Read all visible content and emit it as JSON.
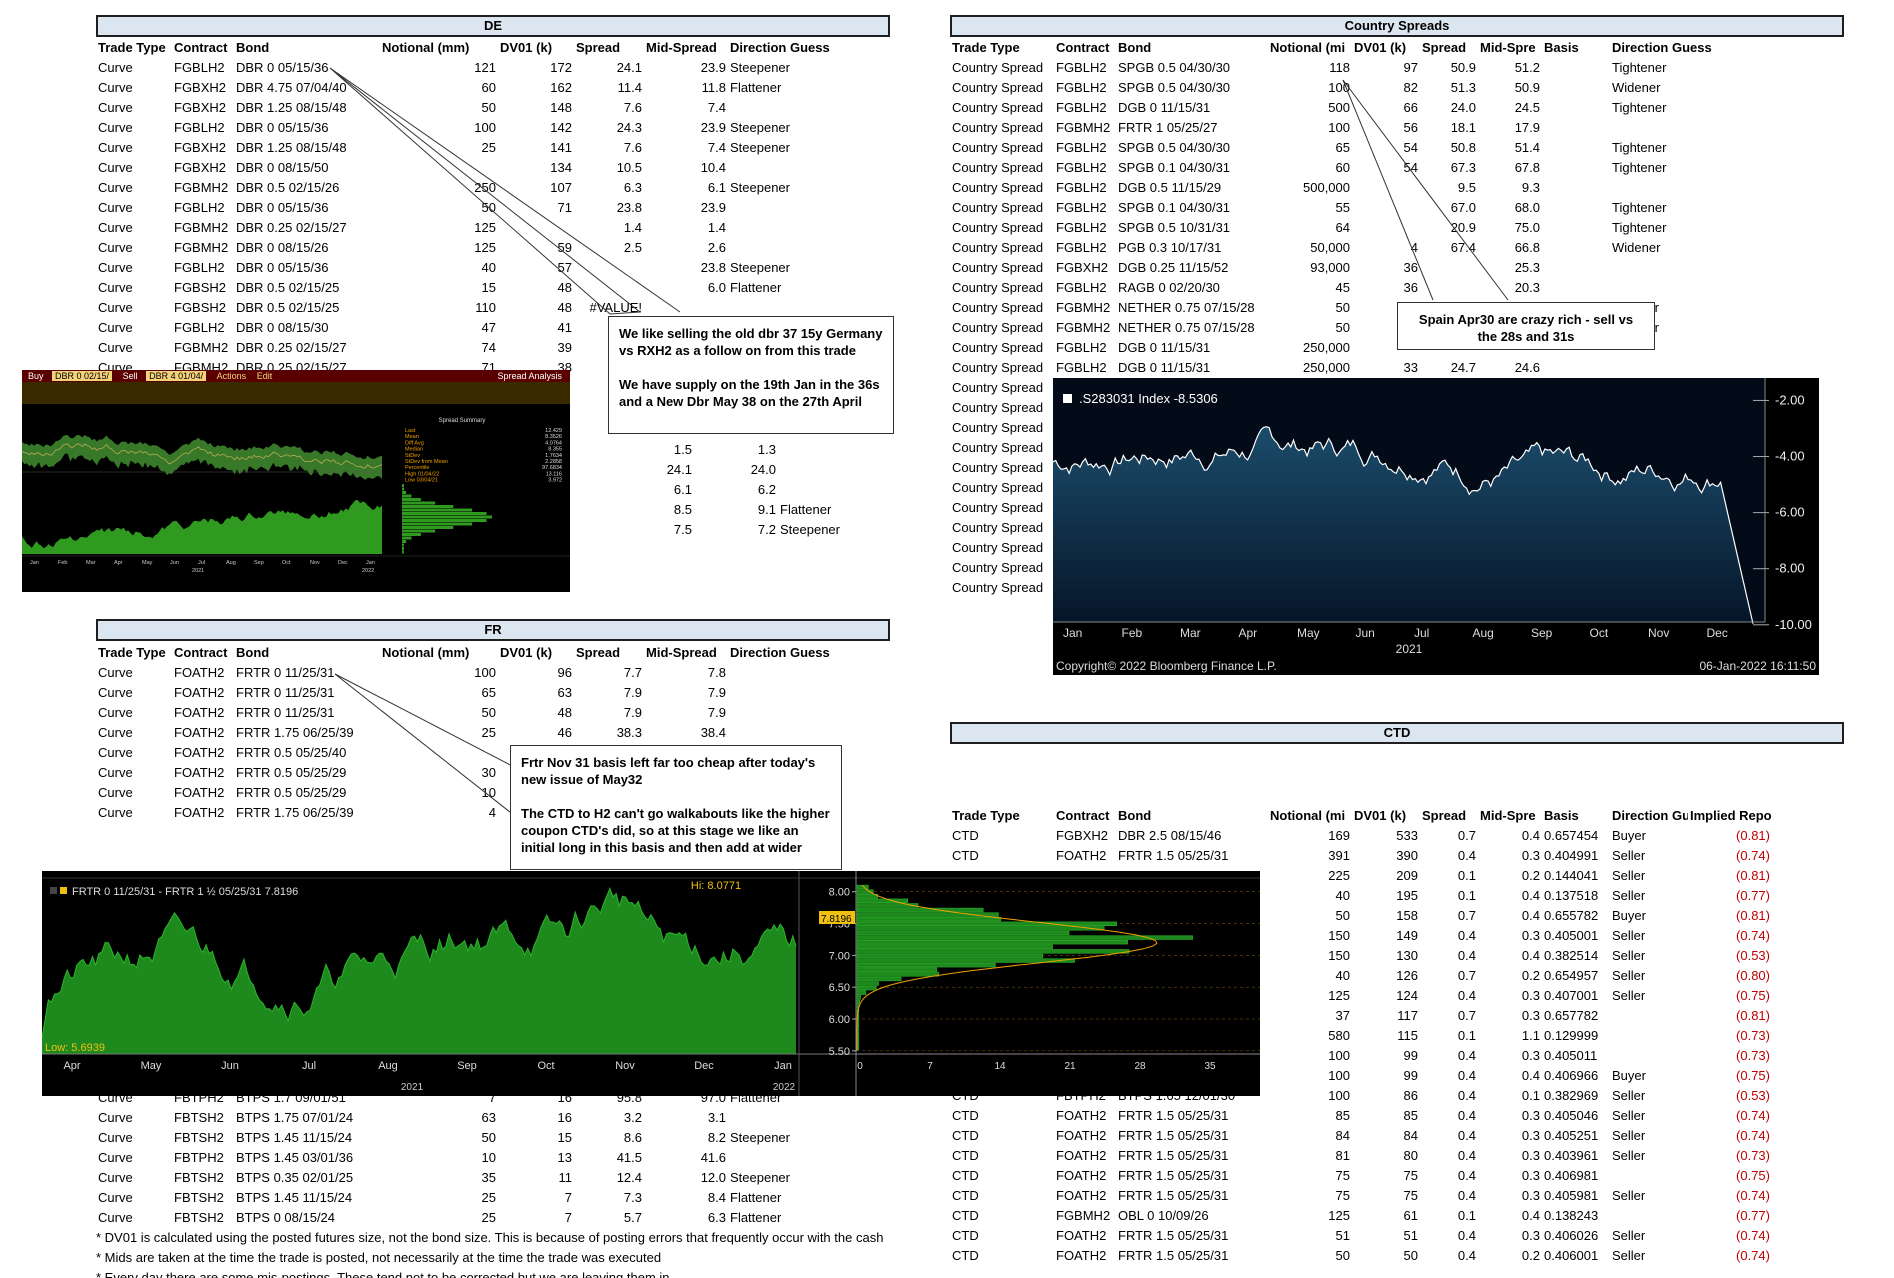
{
  "de": {
    "title": "DE",
    "headers": [
      "Trade Type",
      "Contract",
      "Bond",
      "Notional (mm)",
      "DV01 (k)",
      "Spread",
      "Mid-Spread",
      "Direction Guess"
    ],
    "rows": [
      [
        "Curve",
        "FGBLH2",
        "DBR 0 05/15/36",
        "121",
        "172",
        "24.1",
        "23.9",
        "Steepener"
      ],
      [
        "Curve",
        "FGBXH2",
        "DBR 4.75 07/04/40",
        "60",
        "162",
        "11.4",
        "11.8",
        "Flattener"
      ],
      [
        "Curve",
        "FGBXH2",
        "DBR 1.25 08/15/48",
        "50",
        "148",
        "7.6",
        "7.4",
        ""
      ],
      [
        "Curve",
        "FGBLH2",
        "DBR 0 05/15/36",
        "100",
        "142",
        "24.3",
        "23.9",
        "Steepener"
      ],
      [
        "Curve",
        "FGBXH2",
        "DBR 1.25 08/15/48",
        "25",
        "141",
        "7.6",
        "7.4",
        "Steepener"
      ],
      [
        "Curve",
        "FGBXH2",
        "DBR 0 08/15/50",
        "",
        "134",
        "10.5",
        "10.4",
        ""
      ],
      [
        "Curve",
        "FGBMH2",
        "DBR 0.5 02/15/26",
        "250",
        "107",
        "6.3",
        "6.1",
        "Steepener"
      ],
      [
        "Curve",
        "FGBLH2",
        "DBR 0 05/15/36",
        "50",
        "71",
        "23.8",
        "23.9",
        ""
      ],
      [
        "Curve",
        "FGBMH2",
        "DBR 0.25 02/15/27",
        "125",
        "",
        "1.4",
        "1.4",
        ""
      ],
      [
        "Curve",
        "FGBMH2",
        "DBR 0 08/15/26",
        "125",
        "59",
        "2.5",
        "2.6",
        ""
      ],
      [
        "Curve",
        "FGBLH2",
        "DBR 0 05/15/36",
        "40",
        "57",
        "",
        "23.8",
        "Steepener"
      ],
      [
        "Curve",
        "FGBSH2",
        "DBR 0.5 02/15/25",
        "15",
        "48",
        "",
        "6.0",
        "Flattener"
      ],
      [
        "Curve",
        "FGBSH2",
        "DBR 0.5 02/15/25",
        "110",
        "48",
        "#VALUE!",
        "",
        ""
      ],
      [
        "Curve",
        "FGBLH2",
        "DBR 0 08/15/30",
        "47",
        "41",
        "",
        "",
        ""
      ],
      [
        "Curve",
        "FGBMH2",
        "DBR 0.25 02/15/27",
        "74",
        "39",
        "",
        "",
        ""
      ],
      [
        "Curve",
        "FGBMH2",
        "DBR 0.25 02/15/27",
        "71",
        "38",
        "",
        "",
        ""
      ]
    ],
    "extra_rows": [
      [
        "1.5",
        "1.3",
        ""
      ],
      [
        "24.1",
        "24.0",
        ""
      ],
      [
        "6.1",
        "6.2",
        ""
      ],
      [
        "8.5",
        "9.1",
        "Flattener"
      ],
      [
        "7.5",
        "7.2",
        "Steepener"
      ]
    ]
  },
  "note_de": "We like selling the old dbr 37 15y Germany vs RXH2 as a follow on from this trade\n\nWe have supply on the 19th Jan in the 36s and a New Dbr May 38 on the 27th April",
  "bbg_small": {
    "buy": "Buy",
    "bond1": "DBR 0 02/15/",
    "sell": "Sell",
    "bond2": "DBR 4 01/04/",
    "actions": "Actions",
    "edit": "Edit",
    "title": "Spread Analysis",
    "summary_title": "Spread Summary",
    "stat_labels": [
      "Last",
      "Mean",
      "Diff Avg",
      "Median",
      "StDev",
      "StDev from Mean",
      "Percentile",
      "High 01/04/22",
      "Low 03/04/21"
    ],
    "stat_values": [
      "12.429",
      "8.3526",
      "4.0764",
      "8.355",
      "1.7634",
      "2.2858",
      "97.6834",
      "13.116",
      "3.972"
    ],
    "months": [
      "Jan",
      "Feb",
      "Mar",
      "Apr",
      "May",
      "Jun",
      "Jul",
      "Aug",
      "Sep",
      "Oct",
      "Nov",
      "Dec",
      "Jan"
    ],
    "year_left": "2021",
    "year_right": "2022"
  },
  "cs": {
    "title": "Country Spreads",
    "headers": [
      "Trade Type",
      "Contract",
      "Bond",
      "Notional (mi",
      "DV01 (k)",
      "Spread",
      "Mid-Spre",
      "Basis",
      "Direction Guess"
    ],
    "rows": [
      [
        "Country Spread",
        "FGBLH2",
        "SPGB 0.5 04/30/30",
        "118",
        "97",
        "50.9",
        "51.2",
        "",
        "Tightener"
      ],
      [
        "Country Spread",
        "FGBLH2",
        "SPGB 0.5 04/30/30",
        "100",
        "82",
        "51.3",
        "50.9",
        "",
        "Widener"
      ],
      [
        "Country Spread",
        "FGBLH2",
        "DGB 0 11/15/31",
        "500",
        "66",
        "24.0",
        "24.5",
        "",
        "Tightener"
      ],
      [
        "Country Spread",
        "FGBMH2",
        "FRTR 1 05/25/27",
        "100",
        "56",
        "18.1",
        "17.9",
        "",
        ""
      ],
      [
        "Country Spread",
        "FGBLH2",
        "SPGB 0.5 04/30/30",
        "65",
        "54",
        "50.8",
        "51.4",
        "",
        "Tightener"
      ],
      [
        "Country Spread",
        "FGBLH2",
        "SPGB 0.1 04/30/31",
        "60",
        "54",
        "67.3",
        "67.8",
        "",
        "Tightener"
      ],
      [
        "Country Spread",
        "FGBLH2",
        "DGB 0.5 11/15/29",
        "500,000",
        "",
        "9.5",
        "9.3",
        "",
        ""
      ],
      [
        "Country Spread",
        "FGBLH2",
        "SPGB 0.1 04/30/31",
        "55",
        "",
        "67.0",
        "68.0",
        "",
        "Tightener"
      ],
      [
        "Country Spread",
        "FGBLH2",
        "SPGB 0.5 10/31/31",
        "64",
        "",
        "20.9",
        "75.0",
        "",
        "Tightener"
      ],
      [
        "Country Spread",
        "FGBLH2",
        "PGB 0.3 10/17/31",
        "50,000",
        "4",
        "67.4",
        "66.8",
        "",
        "Widener"
      ],
      [
        "Country Spread",
        "FGBXH2",
        "DGB 0.25 11/15/52",
        "93,000",
        "36",
        "",
        "25.3",
        "",
        ""
      ],
      [
        "Country Spread",
        "FGBLH2",
        "RAGB 0 02/20/30",
        "45",
        "36",
        "",
        "20.3",
        "",
        ""
      ],
      [
        "Country Spread",
        "FGBMH2",
        "NETHER 0.75 07/15/28",
        "50",
        "",
        "",
        "",
        "",
        "ightener"
      ],
      [
        "Country Spread",
        "FGBMH2",
        "NETHER 0.75 07/15/28",
        "50",
        "",
        "",
        "",
        "",
        "ightener"
      ],
      [
        "Country Spread",
        "FGBLH2",
        "DGB 0 11/15/31",
        "250,000",
        "",
        "",
        "",
        "",
        ""
      ],
      [
        "Country Spread",
        "FGBLH2",
        "DGB 0 11/15/31",
        "250,000",
        "33",
        "24.7",
        "24.6",
        "",
        ""
      ],
      [
        "Country Spread",
        "",
        "",
        "",
        "",
        "",
        "",
        "",
        ""
      ],
      [
        "Country Spread",
        "",
        "",
        "",
        "",
        "",
        "",
        "",
        ""
      ],
      [
        "Country Spread",
        "",
        "",
        "",
        "",
        "",
        "",
        "",
        ""
      ],
      [
        "Country Spread",
        "",
        "",
        "",
        "",
        "",
        "",
        "",
        ""
      ],
      [
        "Country Spread",
        "",
        "",
        "",
        "",
        "",
        "",
        "",
        ""
      ],
      [
        "Country Spread",
        "",
        "",
        "",
        "",
        "",
        "",
        "",
        ""
      ],
      [
        "Country Spread",
        "",
        "",
        "",
        "",
        "",
        "",
        "",
        ""
      ],
      [
        "Country Spread",
        "",
        "",
        "",
        "",
        "",
        "",
        "",
        ""
      ],
      [
        "Country Spread",
        "",
        "",
        "",
        "",
        "",
        "",
        "",
        ""
      ],
      [
        "Country Spread",
        "",
        "",
        "",
        "",
        "",
        "",
        "",
        ""
      ],
      [
        "Country Spread",
        "",
        "",
        "",
        "",
        "",
        "",
        "",
        ""
      ]
    ]
  },
  "note_cs": "Spain Apr30 are crazy rich - sell vs the 28s and 31s",
  "bbg_spain": {
    "legend": ".S283031 Index  -8.5306",
    "copyright": "Copyright© 2022 Bloomberg Finance L.P.",
    "timestamp": "06-Jan-2022 16:11:50",
    "year": "2021",
    "months": [
      "Jan",
      "Feb",
      "Mar",
      "Apr",
      "May",
      "Jun",
      "Jul",
      "Aug",
      "Sep",
      "Oct",
      "Nov",
      "Dec"
    ],
    "yticks": [
      "-2.00",
      "-4.00",
      "-6.00",
      "-8.00",
      "-10.00"
    ],
    "fill_color": "#1b4c6b"
  },
  "fr": {
    "title": "FR",
    "headers": [
      "Trade Type",
      "Contract",
      "Bond",
      "Notional (mm)",
      "DV01 (k)",
      "Spread",
      "Mid-Spread",
      "Direction Guess"
    ],
    "rows": [
      [
        "Curve",
        "FOATH2",
        "FRTR 0 11/25/31",
        "100",
        "96",
        "7.7",
        "7.8",
        ""
      ],
      [
        "Curve",
        "FOATH2",
        "FRTR 0 11/25/31",
        "65",
        "63",
        "7.9",
        "7.9",
        ""
      ],
      [
        "Curve",
        "FOATH2",
        "FRTR 0 11/25/31",
        "50",
        "48",
        "7.9",
        "7.9",
        ""
      ],
      [
        "Curve",
        "FOATH2",
        "FRTR 1.75 06/25/39",
        "25",
        "46",
        "38.3",
        "38.4",
        ""
      ],
      [
        "Curve",
        "FOATH2",
        "FRTR 0.5 05/25/40",
        "",
        "",
        "",
        "",
        "r"
      ],
      [
        "Curve",
        "FOATH2",
        "FRTR 0.5 05/25/29",
        "30",
        "",
        "",
        "",
        ""
      ],
      [
        "Curve",
        "FOATH2",
        "FRTR 0.5 05/25/29",
        "10",
        "",
        "",
        "",
        "r"
      ],
      [
        "Curve",
        "FOATH2",
        "FRTR 1.75 06/25/39",
        "4",
        "",
        "",
        "",
        ""
      ]
    ],
    "bottom_rows": [
      [
        "Curve",
        "FBTPH2",
        "BTPS 1.7 09/01/51",
        "7",
        "16",
        "95.8",
        "97.0",
        "Flattener"
      ],
      [
        "Curve",
        "FBTSH2",
        "BTPS 1.75 07/01/24",
        "63",
        "16",
        "3.2",
        "3.1",
        ""
      ],
      [
        "Curve",
        "FBTSH2",
        "BTPS 1.45 11/15/24",
        "50",
        "15",
        "8.6",
        "8.2",
        "Steepener"
      ],
      [
        "Curve",
        "FBTPH2",
        "BTPS 1.45 03/01/36",
        "10",
        "13",
        "41.5",
        "41.6",
        ""
      ],
      [
        "Curve",
        "FBTSH2",
        "BTPS 0.35 02/01/25",
        "35",
        "11",
        "12.4",
        "12.0",
        "Steepener"
      ],
      [
        "Curve",
        "FBTSH2",
        "BTPS 1.45 11/15/24",
        "25",
        "7",
        "7.3",
        "8.4",
        "Flattener"
      ],
      [
        "Curve",
        "FBTSH2",
        "BTPS 0 08/15/24",
        "25",
        "7",
        "5.7",
        "6.3",
        "Flattener"
      ]
    ]
  },
  "note_fr": "Frtr Nov 31 basis left far too cheap after today's new issue of May32\n\nThe CTD to H2 can't go walkabouts like the higher coupon CTD's did, so at this stage we like an initial long in this basis and then add at wider",
  "bbg_fr": {
    "legend": "FRTR 0 11/25/31 - FRTR 1 ½ 05/25/31 7.8196",
    "hi": "Hi: 8.0771",
    "low": "Low: 5.6939",
    "last": "7.8196",
    "months": [
      "Apr",
      "May",
      "Jun",
      "Jul",
      "Aug",
      "Sep",
      "Oct",
      "Nov",
      "Dec",
      "Jan"
    ],
    "year_left": "2021",
    "year_right": "2022",
    "yticks": [
      "8.00",
      "7.50",
      "7.00",
      "6.50",
      "6.00",
      "5.50"
    ],
    "hist_x": [
      "0",
      "7",
      "14",
      "21",
      "28",
      "35"
    ],
    "fill_color": "#1e8a1e"
  },
  "ctd": {
    "title": "CTD",
    "headers": [
      "Trade Type",
      "Contract",
      "Bond",
      "Notional (mi",
      "DV01 (k)",
      "Spread",
      "Mid-Spre",
      "Basis",
      "Direction Guess",
      "Implied Repo"
    ],
    "rows": [
      [
        "CTD",
        "FGBXH2",
        "DBR 2.5 08/15/46",
        "169",
        "533",
        "0.7",
        "0.4",
        "0.657454",
        "Buyer",
        "(0.81)"
      ],
      [
        "CTD",
        "FOATH2",
        "FRTR 1.5 05/25/31",
        "391",
        "390",
        "0.4",
        "0.3",
        "0.404991",
        "Seller",
        "(0.74)"
      ],
      [
        "",
        "",
        "",
        "225",
        "209",
        "0.1",
        "0.2",
        "0.144041",
        "Seller",
        "(0.81)"
      ],
      [
        "",
        "",
        "",
        "40",
        "195",
        "0.1",
        "0.4",
        "0.137518",
        "Seller",
        "(0.77)"
      ],
      [
        "",
        "",
        "",
        "50",
        "158",
        "0.7",
        "0.4",
        "0.655782",
        "Buyer",
        "(0.81)"
      ],
      [
        "",
        "",
        "",
        "150",
        "149",
        "0.4",
        "0.3",
        "0.405001",
        "Seller",
        "(0.74)"
      ],
      [
        "",
        "",
        "",
        "150",
        "130",
        "0.4",
        "0.4",
        "0.382514",
        "Seller",
        "(0.53)"
      ],
      [
        "",
        "",
        "",
        "40",
        "126",
        "0.7",
        "0.2",
        "0.654957",
        "Seller",
        "(0.80)"
      ],
      [
        "",
        "",
        "",
        "125",
        "124",
        "0.4",
        "0.3",
        "0.407001",
        "Seller",
        "(0.75)"
      ],
      [
        "",
        "",
        "",
        "37",
        "117",
        "0.7",
        "0.3",
        "0.657782",
        "",
        "(0.81)"
      ],
      [
        "",
        "",
        "",
        "580",
        "115",
        "0.1",
        "1.1",
        "0.129999",
        "",
        "(0.73)"
      ],
      [
        "",
        "",
        "",
        "100",
        "99",
        "0.4",
        "0.3",
        "0.405011",
        "",
        "(0.73)"
      ],
      [
        "",
        "",
        "",
        "100",
        "99",
        "0.4",
        "0.4",
        "0.406966",
        "Buyer",
        "(0.75)"
      ],
      [
        "CTD",
        "FBTPH2",
        "BTPS 1.65 12/01/30",
        "100",
        "86",
        "0.4",
        "0.1",
        "0.382969",
        "Seller",
        "(0.53)"
      ],
      [
        "CTD",
        "FOATH2",
        "FRTR 1.5 05/25/31",
        "85",
        "85",
        "0.4",
        "0.3",
        "0.405046",
        "Seller",
        "(0.74)"
      ],
      [
        "CTD",
        "FOATH2",
        "FRTR 1.5 05/25/31",
        "84",
        "84",
        "0.4",
        "0.3",
        "0.405251",
        "Seller",
        "(0.74)"
      ],
      [
        "CTD",
        "FOATH2",
        "FRTR 1.5 05/25/31",
        "81",
        "80",
        "0.4",
        "0.3",
        "0.403961",
        "Seller",
        "(0.73)"
      ],
      [
        "CTD",
        "FOATH2",
        "FRTR 1.5 05/25/31",
        "75",
        "75",
        "0.4",
        "0.3",
        "0.406981",
        "",
        "(0.75)"
      ],
      [
        "CTD",
        "FOATH2",
        "FRTR 1.5 05/25/31",
        "75",
        "75",
        "0.4",
        "0.3",
        "0.405981",
        "Seller",
        "(0.74)"
      ],
      [
        "CTD",
        "FGBMH2",
        "OBL 0 10/09/26",
        "125",
        "61",
        "0.1",
        "0.4",
        "0.138243",
        "",
        "(0.77)"
      ],
      [
        "CTD",
        "FOATH2",
        "FRTR 1.5 05/25/31",
        "51",
        "51",
        "0.4",
        "0.3",
        "0.406026",
        "Seller",
        "(0.74)"
      ],
      [
        "CTD",
        "FOATH2",
        "FRTR 1.5 05/25/31",
        "50",
        "50",
        "0.4",
        "0.2",
        "0.406001",
        "Seller",
        "(0.74)"
      ]
    ]
  },
  "footnotes": [
    "* DV01 is calculated using the posted futures size, not the bond size. This is because of posting errors that frequently occur with the cash",
    "* Mids are taken at the time the trade is posted, not necessarily at the time the trade was executed",
    "* Every day there are some mis-postings. These tend not to be corrected but we are leaving them in"
  ]
}
